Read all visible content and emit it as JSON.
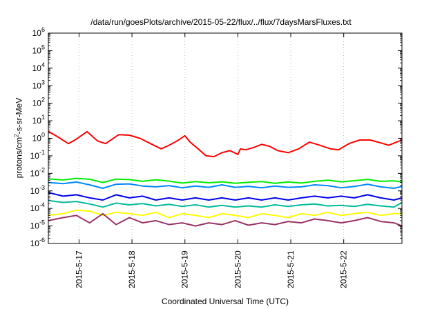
{
  "chart_data": {
    "type": "line",
    "title": "/data/run/goesPlots/archive/2015-05-22/flux/../flux/7daysMarsFluxes.txt",
    "xlabel": "Coordinated Universal Time (UTC)",
    "ylabel": {
      "before": "protons/cm",
      "sup": "2",
      "after": "-s-sr-MeV"
    },
    "yscale": "log",
    "ylim": [
      1e-06,
      1000000.0
    ],
    "xlim": [
      -0.58,
      6.1
    ],
    "x_tick_values": [
      0,
      1,
      2,
      3,
      4,
      5
    ],
    "x_tick_labels": [
      "2015-5-17",
      "2015-5-18",
      "2015-5-19",
      "2015-5-20",
      "2015-5-21",
      "2015-5-22"
    ],
    "y_ticks": [
      {
        "base": "10",
        "exp": "-6",
        "value": 1e-06
      },
      {
        "base": "10",
        "exp": "-5",
        "value": 1e-05
      },
      {
        "base": "10",
        "exp": "-4",
        "value": 0.0001
      },
      {
        "base": "10",
        "exp": "-3",
        "value": 0.001
      },
      {
        "base": "10",
        "exp": "-2",
        "value": 0.01
      },
      {
        "base": "10",
        "exp": "-1",
        "value": 0.1
      },
      {
        "base": "10",
        "exp": "0",
        "value": 1
      },
      {
        "base": "10",
        "exp": "1",
        "value": 10
      },
      {
        "base": "10",
        "exp": "2",
        "value": 100
      },
      {
        "base": "10",
        "exp": "3",
        "value": 1000
      },
      {
        "base": "10",
        "exp": "4",
        "value": 10000
      },
      {
        "base": "10",
        "exp": "5",
        "value": 100000
      },
      {
        "base": "10",
        "exp": "6",
        "value": 1000000
      }
    ],
    "series": [
      {
        "color": "#ff0000",
        "x": [
          -0.58,
          -0.4,
          -0.2,
          -0.05,
          0.15,
          0.35,
          0.5,
          0.75,
          0.95,
          1.15,
          1.35,
          1.55,
          1.7,
          1.85,
          2.0,
          2.1,
          2.25,
          2.4,
          2.55,
          2.7,
          2.85,
          3.0,
          3.05,
          3.15,
          3.3,
          3.45,
          3.6,
          3.75,
          3.95,
          4.15,
          4.35,
          4.55,
          4.75,
          4.9,
          5.1,
          5.3,
          5.5,
          5.65,
          5.85,
          6.1
        ],
        "y": [
          2.5,
          1.2,
          0.5,
          0.9,
          2.4,
          0.7,
          0.5,
          1.6,
          1.5,
          1.0,
          0.5,
          0.25,
          0.4,
          0.7,
          1.4,
          0.6,
          0.25,
          0.1,
          0.09,
          0.15,
          0.2,
          0.12,
          0.25,
          0.22,
          0.3,
          0.45,
          0.35,
          0.2,
          0.15,
          0.25,
          0.6,
          0.4,
          0.25,
          0.22,
          0.5,
          0.8,
          0.8,
          0.6,
          0.4,
          0.8
        ]
      },
      {
        "color": "#00ee00",
        "x": [
          -0.58,
          -0.3,
          -0.05,
          0.2,
          0.45,
          0.7,
          0.95,
          1.2,
          1.45,
          1.7,
          1.95,
          2.2,
          2.45,
          2.7,
          2.95,
          3.2,
          3.45,
          3.7,
          3.95,
          4.2,
          4.45,
          4.7,
          4.95,
          5.2,
          5.45,
          5.7,
          5.95,
          6.1
        ],
        "y": [
          0.0048,
          0.0042,
          0.0052,
          0.0046,
          0.003,
          0.0047,
          0.0044,
          0.0035,
          0.0043,
          0.0036,
          0.0028,
          0.0034,
          0.0029,
          0.0033,
          0.0027,
          0.0031,
          0.0034,
          0.0027,
          0.0032,
          0.0028,
          0.0035,
          0.0041,
          0.0033,
          0.0038,
          0.0045,
          0.0035,
          0.0037,
          0.0032
        ]
      },
      {
        "color": "#0088ff",
        "x": [
          -0.58,
          -0.3,
          -0.05,
          0.2,
          0.45,
          0.7,
          0.95,
          1.2,
          1.45,
          1.7,
          1.95,
          2.2,
          2.45,
          2.7,
          2.95,
          3.2,
          3.45,
          3.7,
          3.95,
          4.2,
          4.45,
          4.7,
          4.95,
          5.2,
          5.45,
          5.7,
          5.95,
          6.1
        ],
        "y": [
          0.003,
          0.0026,
          0.0032,
          0.0022,
          0.0014,
          0.0024,
          0.0025,
          0.0019,
          0.0017,
          0.002,
          0.0015,
          0.0019,
          0.0016,
          0.0022,
          0.0016,
          0.0018,
          0.0015,
          0.0019,
          0.0016,
          0.0017,
          0.0022,
          0.002,
          0.0015,
          0.0018,
          0.0024,
          0.0017,
          0.0014,
          0.0018
        ]
      },
      {
        "color": "#0000ee",
        "x": [
          -0.58,
          -0.3,
          -0.05,
          0.2,
          0.45,
          0.7,
          0.95,
          1.2,
          1.45,
          1.7,
          1.95,
          2.2,
          2.45,
          2.7,
          2.95,
          3.2,
          3.45,
          3.7,
          3.95,
          4.2,
          4.45,
          4.7,
          4.95,
          5.2,
          5.45,
          5.7,
          5.95,
          6.1
        ],
        "y": [
          0.0008,
          0.0005,
          0.0006,
          0.0004,
          0.0003,
          0.0006,
          0.0004,
          0.0005,
          0.0003,
          0.0004,
          0.0003,
          0.0004,
          0.0003,
          0.0004,
          0.0003,
          0.0004,
          0.0003,
          0.0004,
          0.0003,
          0.0004,
          0.0005,
          0.0004,
          0.0005,
          0.0004,
          0.0006,
          0.0004,
          0.0003,
          0.0004
        ]
      },
      {
        "color": "#00bb99",
        "x": [
          -0.58,
          -0.3,
          -0.05,
          0.2,
          0.45,
          0.7,
          0.95,
          1.2,
          1.45,
          1.7,
          1.95,
          2.2,
          2.45,
          2.7,
          2.95,
          3.2,
          3.45,
          3.7,
          3.95,
          4.2,
          4.45,
          4.7,
          4.95,
          5.2,
          5.45,
          5.7,
          5.95,
          6.1
        ],
        "y": [
          0.00028,
          0.00022,
          0.00025,
          0.00018,
          0.00012,
          0.0002,
          0.00016,
          0.00019,
          0.00014,
          0.00017,
          0.00013,
          0.00016,
          0.00012,
          0.00015,
          0.00012,
          0.00014,
          0.00012,
          0.00016,
          0.00013,
          0.00016,
          0.00018,
          0.00014,
          0.00015,
          0.00013,
          0.00017,
          0.00014,
          0.00012,
          0.00022
        ]
      },
      {
        "color": "#ffff00",
        "x": [
          -0.58,
          -0.3,
          -0.05,
          0.2,
          0.45,
          0.7,
          0.95,
          1.2,
          1.45,
          1.7,
          1.95,
          2.2,
          2.45,
          2.7,
          2.95,
          3.2,
          3.45,
          3.7,
          3.95,
          4.2,
          4.45,
          4.7,
          4.95,
          5.2,
          5.45,
          5.7,
          5.95,
          6.1
        ],
        "y": [
          4e-05,
          5e-05,
          8e-05,
          7e-05,
          4e-05,
          6e-05,
          5e-05,
          4e-05,
          6e-05,
          3e-05,
          5e-05,
          4e-05,
          3e-05,
          5e-05,
          4e-05,
          3e-05,
          5e-05,
          4e-05,
          3e-05,
          5e-05,
          4e-05,
          6e-05,
          4e-05,
          5e-05,
          6e-05,
          4e-05,
          5e-05,
          5e-05
        ]
      },
      {
        "color": "#993366",
        "x": [
          -0.58,
          -0.3,
          -0.05,
          0.2,
          0.45,
          0.7,
          0.95,
          1.2,
          1.45,
          1.7,
          1.95,
          2.2,
          2.45,
          2.7,
          2.95,
          3.2,
          3.45,
          3.7,
          3.95,
          4.2,
          4.45,
          4.7,
          4.95,
          5.2,
          5.45,
          5.7,
          5.95,
          6.1
        ],
        "y": [
          2e-05,
          3e-05,
          4e-05,
          1.5e-05,
          5e-05,
          1.2e-05,
          3e-05,
          1.5e-05,
          2e-05,
          1.2e-05,
          1.5e-05,
          1e-05,
          1.5e-05,
          1.2e-05,
          2e-05,
          1.1e-05,
          1.5e-05,
          1.2e-05,
          1.8e-05,
          1.5e-05,
          2.5e-05,
          2e-05,
          1.5e-05,
          2e-05,
          3e-05,
          1.8e-05,
          1.5e-05,
          1e-05
        ]
      }
    ]
  }
}
